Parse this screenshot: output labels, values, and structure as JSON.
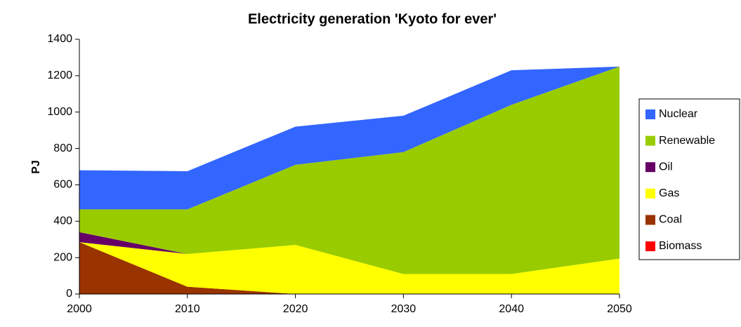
{
  "chart_data": {
    "type": "stacked_area",
    "title": "Electricity generation 'Kyoto for ever'",
    "y_label": "PJ",
    "x": [
      2000,
      2010,
      2020,
      2030,
      2040,
      2050
    ],
    "series": [
      {
        "name": "Biomass",
        "color": "#ff0000",
        "values": [
          0,
          0,
          0,
          0,
          0,
          0
        ]
      },
      {
        "name": "Coal",
        "color": "#993300",
        "values": [
          285,
          40,
          0,
          0,
          0,
          0
        ]
      },
      {
        "name": "Gas",
        "color": "#ffff00",
        "values": [
          0,
          180,
          270,
          110,
          110,
          195
        ]
      },
      {
        "name": "Oil",
        "color": "#660066",
        "values": [
          55,
          0,
          0,
          0,
          0,
          0
        ]
      },
      {
        "name": "Renewable",
        "color": "#99cc00",
        "values": [
          125,
          245,
          440,
          670,
          930,
          1055
        ]
      },
      {
        "name": "Nuclear",
        "color": "#3366ff",
        "values": [
          215,
          210,
          210,
          200,
          190,
          0
        ]
      }
    ],
    "xlim": [
      2000,
      2050
    ],
    "xticks": [
      2000,
      2010,
      2020,
      2030,
      2040,
      2050
    ],
    "ylim": [
      0,
      1400
    ],
    "yticks": [
      0,
      200,
      400,
      600,
      800,
      1000,
      1200,
      1400
    ],
    "grid": false,
    "legend": "right"
  }
}
